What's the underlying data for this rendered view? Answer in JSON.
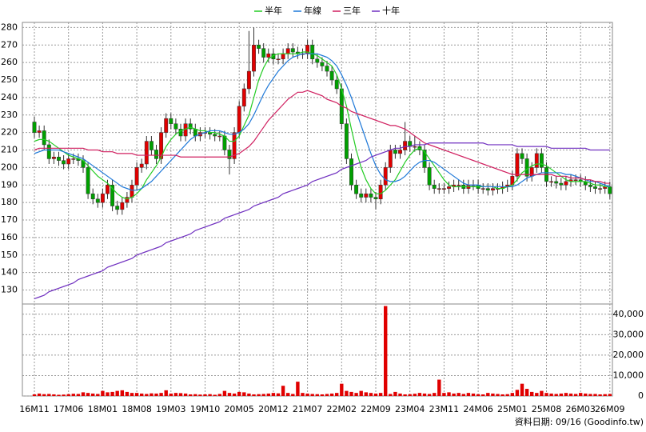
{
  "chart_data": [
    {
      "type": "candlestick",
      "open": [
        226,
        220,
        221,
        213,
        205,
        206,
        204,
        202,
        205,
        205,
        204,
        200,
        185,
        182,
        180,
        185,
        190,
        178,
        176,
        180,
        183,
        190,
        200,
        202,
        215,
        210,
        205,
        220,
        228,
        225,
        222,
        218,
        225,
        222,
        218,
        220,
        220,
        219,
        218,
        218,
        210,
        205,
        220,
        235,
        245,
        255,
        270,
        268,
        263,
        265,
        262,
        262,
        265,
        268,
        266,
        265,
        265,
        270,
        262,
        260,
        258,
        255,
        250,
        245,
        225,
        205,
        190,
        185,
        183,
        185,
        183,
        182,
        190,
        200,
        210,
        208,
        210,
        215,
        212,
        212,
        210,
        200,
        190,
        188,
        188,
        188,
        189,
        190,
        190,
        188,
        190,
        190,
        188,
        188,
        187,
        188,
        188,
        189,
        190,
        195,
        208,
        205,
        195,
        200,
        208,
        200,
        192,
        192,
        191,
        190,
        192,
        193,
        193,
        192,
        190,
        189,
        188,
        188,
        189
      ],
      "high": [
        229,
        224,
        224,
        216,
        209,
        209,
        207,
        208,
        208,
        208,
        207,
        203,
        188,
        185,
        188,
        193,
        193,
        181,
        183,
        186,
        193,
        203,
        205,
        218,
        218,
        213,
        223,
        231,
        231,
        228,
        225,
        228,
        228,
        225,
        223,
        223,
        223,
        222,
        221,
        221,
        213,
        223,
        238,
        248,
        278,
        280,
        273,
        271,
        268,
        268,
        265,
        268,
        271,
        271,
        269,
        268,
        273,
        273,
        265,
        263,
        261,
        258,
        253,
        248,
        228,
        208,
        193,
        188,
        188,
        188,
        186,
        193,
        203,
        213,
        213,
        213,
        226,
        218,
        218,
        215,
        213,
        203,
        193,
        191,
        191,
        192,
        193,
        193,
        193,
        193,
        193,
        193,
        191,
        191,
        191,
        191,
        192,
        193,
        198,
        211,
        211,
        208,
        203,
        211,
        211,
        203,
        195,
        195,
        194,
        195,
        196,
        196,
        196,
        195,
        193,
        192,
        191,
        192,
        192
      ],
      "low": [
        217,
        217,
        210,
        202,
        202,
        201,
        199,
        199,
        202,
        201,
        197,
        182,
        179,
        177,
        177,
        182,
        175,
        173,
        173,
        177,
        180,
        187,
        197,
        199,
        207,
        202,
        202,
        217,
        222,
        219,
        215,
        215,
        219,
        215,
        215,
        217,
        216,
        215,
        215,
        207,
        196,
        202,
        217,
        232,
        242,
        252,
        265,
        260,
        260,
        259,
        259,
        259,
        262,
        263,
        262,
        262,
        262,
        259,
        257,
        255,
        252,
        247,
        242,
        222,
        202,
        187,
        182,
        180,
        180,
        180,
        176,
        179,
        187,
        197,
        205,
        205,
        207,
        209,
        209,
        207,
        197,
        187,
        185,
        185,
        185,
        185,
        186,
        187,
        185,
        185,
        187,
        185,
        185,
        184,
        184,
        185,
        185,
        186,
        187,
        192,
        202,
        192,
        192,
        197,
        197,
        189,
        189,
        188,
        187,
        187,
        189,
        190,
        189,
        187,
        186,
        185,
        185,
        185,
        182
      ],
      "close": [
        220,
        221,
        213,
        205,
        206,
        204,
        202,
        205,
        205,
        204,
        200,
        185,
        182,
        180,
        185,
        190,
        178,
        176,
        180,
        183,
        190,
        200,
        202,
        215,
        210,
        205,
        220,
        228,
        225,
        222,
        218,
        225,
        222,
        218,
        220,
        220,
        219,
        218,
        218,
        210,
        205,
        220,
        235,
        245,
        255,
        270,
        268,
        263,
        265,
        262,
        262,
        265,
        268,
        266,
        265,
        265,
        270,
        262,
        260,
        258,
        255,
        250,
        245,
        225,
        205,
        190,
        185,
        183,
        185,
        183,
        182,
        190,
        200,
        210,
        208,
        210,
        215,
        212,
        212,
        210,
        200,
        190,
        188,
        188,
        188,
        189,
        190,
        190,
        188,
        190,
        190,
        188,
        188,
        187,
        188,
        188,
        189,
        190,
        195,
        208,
        205,
        195,
        200,
        208,
        200,
        192,
        192,
        191,
        190,
        192,
        193,
        193,
        192,
        190,
        189,
        188,
        188,
        189,
        185
      ],
      "up_color": "#e00000",
      "down_color": "#00a000",
      "series": [
        {
          "name": "半年",
          "color": "#22cc22",
          "values": [
            215,
            216,
            216,
            215,
            213,
            211,
            209,
            207,
            206,
            205,
            204,
            201,
            198,
            195,
            193,
            191,
            188,
            185,
            183,
            182,
            183,
            185,
            188,
            193,
            197,
            201,
            206,
            212,
            216,
            219,
            221,
            222,
            223,
            222,
            221,
            221,
            220,
            220,
            219,
            218,
            215,
            215,
            218,
            224,
            230,
            240,
            250,
            257,
            262,
            264,
            265,
            265,
            265,
            265,
            265,
            266,
            266,
            265,
            264,
            262,
            260,
            258,
            253,
            245,
            235,
            222,
            210,
            200,
            193,
            188,
            185,
            185,
            187,
            190,
            193,
            198,
            203,
            207,
            210,
            211,
            209,
            205,
            201,
            197,
            193,
            190,
            189,
            189,
            189,
            189,
            189,
            189,
            189,
            189,
            189,
            188,
            188,
            189,
            190,
            193,
            197,
            199,
            201,
            202,
            202,
            201,
            199,
            197,
            195,
            193,
            192,
            192,
            192,
            192,
            191,
            190,
            190,
            189,
            189
          ]
        },
        {
          "name": "年線",
          "color": "#1e78d8",
          "values": [
            208,
            209,
            210,
            210,
            210,
            210,
            209,
            208,
            207,
            206,
            205,
            203,
            201,
            199,
            197,
            195,
            193,
            191,
            189,
            188,
            187,
            187,
            188,
            190,
            192,
            195,
            198,
            201,
            204,
            207,
            210,
            213,
            216,
            218,
            219,
            220,
            221,
            221,
            221,
            220,
            219,
            219,
            220,
            222,
            225,
            230,
            236,
            242,
            247,
            251,
            255,
            258,
            261,
            263,
            264,
            265,
            265,
            265,
            265,
            264,
            263,
            261,
            258,
            253,
            247,
            240,
            232,
            224,
            216,
            208,
            201,
            196,
            193,
            192,
            192,
            193,
            195,
            198,
            201,
            203,
            204,
            204,
            203,
            201,
            199,
            197,
            195,
            193,
            191,
            190,
            190,
            190,
            189,
            189,
            189,
            189,
            189,
            189,
            189,
            190,
            192,
            194,
            195,
            196,
            197,
            197,
            197,
            197,
            197,
            196,
            196,
            195,
            194,
            193,
            192,
            192,
            191,
            190,
            189
          ]
        },
        {
          "name": "三年",
          "color": "#d02060",
          "values": [
            210,
            211,
            211,
            211,
            211,
            211,
            211,
            211,
            211,
            211,
            211,
            210,
            210,
            210,
            209,
            209,
            209,
            208,
            208,
            208,
            208,
            207,
            207,
            207,
            207,
            207,
            207,
            207,
            207,
            207,
            206,
            206,
            206,
            206,
            206,
            206,
            206,
            206,
            206,
            206,
            206,
            207,
            208,
            210,
            212,
            215,
            219,
            223,
            227,
            230,
            233,
            236,
            239,
            241,
            243,
            243,
            244,
            243,
            242,
            241,
            239,
            238,
            237,
            235,
            234,
            232,
            231,
            230,
            229,
            228,
            227,
            226,
            225,
            224,
            224,
            223,
            222,
            220,
            218,
            216,
            214,
            213,
            212,
            211,
            210,
            209,
            208,
            207,
            206,
            205,
            204,
            203,
            202,
            201,
            200,
            199,
            198,
            197,
            196,
            196,
            196,
            196,
            196,
            196,
            196,
            196,
            196,
            195,
            195,
            195,
            194,
            194,
            194,
            193,
            193,
            192,
            192,
            191,
            191
          ]
        },
        {
          "name": "十年",
          "color": "#7030c0",
          "values": [
            125,
            126,
            127,
            129,
            130,
            131,
            132,
            133,
            134,
            136,
            137,
            138,
            139,
            140,
            141,
            143,
            144,
            145,
            146,
            147,
            148,
            150,
            151,
            152,
            153,
            154,
            155,
            157,
            158,
            159,
            160,
            161,
            162,
            164,
            165,
            166,
            167,
            168,
            169,
            171,
            172,
            173,
            174,
            175,
            176,
            178,
            179,
            180,
            181,
            182,
            183,
            185,
            186,
            187,
            188,
            189,
            190,
            192,
            193,
            194,
            195,
            196,
            197,
            199,
            200,
            201,
            202,
            203,
            204,
            206,
            207,
            208,
            209,
            210,
            211,
            211,
            212,
            212,
            213,
            213,
            213,
            214,
            214,
            214,
            214,
            214,
            214,
            214,
            214,
            214,
            214,
            214,
            214,
            213,
            213,
            213,
            213,
            213,
            213,
            212,
            212,
            212,
            212,
            212,
            212,
            212,
            211,
            211,
            211,
            211,
            211,
            211,
            211,
            211,
            210,
            210,
            210,
            210,
            210
          ]
        }
      ],
      "ylim": [
        122,
        282
      ],
      "yticks": [
        130,
        140,
        150,
        160,
        170,
        180,
        190,
        200,
        210,
        220,
        230,
        240,
        250,
        260,
        270,
        280
      ],
      "grid": true
    },
    {
      "type": "bar",
      "categories": [
        "16M11",
        null,
        null,
        null,
        null,
        null,
        null,
        "17M06",
        null,
        null,
        null,
        null,
        null,
        null,
        "18M01",
        null,
        null,
        null,
        null,
        null,
        null,
        "18M08",
        null,
        null,
        null,
        null,
        null,
        null,
        "19M03",
        null,
        null,
        null,
        null,
        null,
        null,
        "19M10",
        null,
        null,
        null,
        null,
        null,
        null,
        "20M05",
        null,
        null,
        null,
        null,
        null,
        null,
        "20M12",
        null,
        null,
        null,
        null,
        null,
        null,
        "21M07",
        null,
        null,
        null,
        null,
        null,
        null,
        "22M02",
        null,
        null,
        null,
        null,
        null,
        null,
        "22M09",
        null,
        null,
        null,
        null,
        null,
        null,
        "23M04",
        null,
        null,
        null,
        null,
        null,
        null,
        "23M11",
        null,
        null,
        null,
        null,
        null,
        null,
        "24M06",
        null,
        null,
        null,
        null,
        null,
        null,
        "25M01",
        null,
        null,
        null,
        null,
        null,
        null,
        "25M08",
        null,
        null,
        null,
        null,
        null,
        null,
        "26M03",
        null,
        null,
        null,
        null,
        null,
        "26M09"
      ],
      "values": [
        800,
        1200,
        900,
        1000,
        800,
        600,
        700,
        900,
        1100,
        1000,
        1800,
        1500,
        1200,
        1000,
        2500,
        1800,
        2000,
        2500,
        2800,
        2000,
        1500,
        1500,
        1200,
        1000,
        1300,
        1200,
        1500,
        2800,
        1200,
        1500,
        1400,
        1200,
        800,
        900,
        700,
        800,
        900,
        600,
        1000,
        2500,
        1500,
        1200,
        2000,
        1800,
        1200,
        800,
        900,
        1000,
        1200,
        1500,
        1300,
        5000,
        1500,
        1000,
        7000,
        1500,
        1200,
        1000,
        900,
        800,
        1000,
        1200,
        1500,
        6000,
        2500,
        2000,
        1500,
        2500,
        1800,
        1500,
        1200,
        1500,
        44000,
        1000,
        2000,
        1200,
        800,
        900,
        1100,
        1500,
        1200,
        1000,
        1500,
        8000,
        1500,
        1800,
        1200,
        1500,
        1000,
        1500,
        1200,
        900,
        800,
        1500,
        1200,
        1000,
        800,
        900,
        1500,
        3000,
        6000,
        3500,
        2000,
        1500,
        2500,
        1500,
        1200,
        1000,
        1200,
        1500,
        1200,
        1000,
        1500,
        1200,
        1000,
        1000,
        800,
        900,
        1000
      ],
      "color": "#e00000",
      "ylim": [
        0,
        45000
      ],
      "yticks": [
        0,
        {
          "value": 10000,
          "label": "10,000"
        },
        {
          "value": 20000,
          "label": "20,000"
        },
        {
          "value": 30000,
          "label": "30,000"
        },
        {
          "value": 40000,
          "label": "40,000"
        }
      ],
      "grid": true,
      "source": "資料日期: 09/16 (Goodinfo.tw)"
    }
  ]
}
